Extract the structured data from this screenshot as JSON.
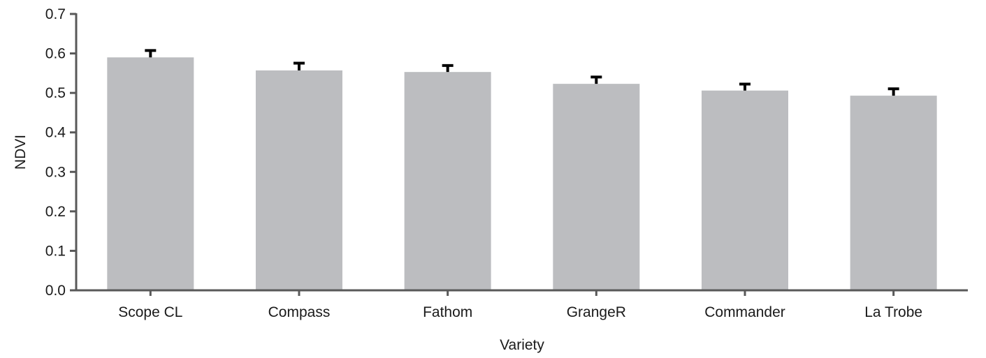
{
  "chart_data": {
    "type": "bar",
    "title": "",
    "xlabel": "Variety",
    "ylabel": "NDVI",
    "ylim": [
      0,
      0.7
    ],
    "yticks": [
      "0.0",
      "0.1",
      "0.2",
      "0.3",
      "0.4",
      "0.5",
      "0.6",
      "0.7"
    ],
    "categories": [
      "Scope CL",
      "Compass",
      "Fathom",
      "GrangeR",
      "Commander",
      "La Trobe"
    ],
    "values": [
      0.59,
      0.557,
      0.553,
      0.523,
      0.506,
      0.493
    ],
    "error_upper": [
      0.02,
      0.021,
      0.019,
      0.02,
      0.019,
      0.02
    ],
    "grid": false,
    "legend": null
  },
  "colors": {
    "bar": "#bcbdc0",
    "axis": "#595959",
    "error_bar": "#000000",
    "text": "#1a1a1a"
  }
}
